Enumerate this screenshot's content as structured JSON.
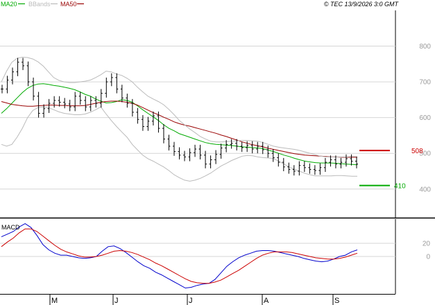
{
  "copyright": "© TEC 13/9/2026 3:0 GMT",
  "legend": [
    {
      "label": "MA20",
      "color": "#00aa00"
    },
    {
      "label": "BBands",
      "color": "#bbbbbb"
    },
    {
      "label": "MA50",
      "color": "#990000"
    }
  ],
  "macd_label": "MACD",
  "chart_data": [
    {
      "type": "line",
      "panel": "price",
      "y_ticks": [
        "800",
        "700",
        "600",
        "500",
        "400"
      ],
      "ylim": [
        320,
        900
      ],
      "x_month_labels": [
        "M",
        "J",
        "J",
        "A",
        "S"
      ],
      "levels": [
        {
          "name": "resistance",
          "value": 508,
          "label": "508",
          "color": "#cc0000"
        },
        {
          "name": "support",
          "value": 410,
          "label": "410",
          "color": "#00aa00"
        }
      ],
      "series": [
        {
          "name": "MA20",
          "color": "#00aa00",
          "values": [
            612,
            625,
            640,
            655,
            670,
            682,
            690,
            694,
            695,
            693,
            690,
            688,
            685,
            682,
            678,
            672,
            665,
            660,
            652,
            646,
            641,
            642,
            645,
            650,
            648,
            643,
            633,
            622,
            612,
            602,
            592,
            580,
            570,
            563,
            555,
            550,
            545,
            540,
            535,
            530,
            527,
            525,
            524,
            523,
            522,
            520,
            518,
            517,
            516,
            515,
            513,
            509,
            505,
            500,
            495,
            491,
            486,
            482,
            478,
            476,
            474,
            473,
            473,
            473,
            472,
            471,
            470,
            469,
            468
          ]
        },
        {
          "name": "MA50",
          "color": "#990000",
          "values": [
            645,
            641,
            637,
            635,
            633,
            632,
            632,
            633,
            634,
            635,
            635,
            634,
            634,
            633,
            633,
            633,
            634,
            637,
            640,
            643,
            645,
            646,
            646,
            645,
            643,
            640,
            635,
            628,
            621,
            614,
            608,
            601,
            595,
            588,
            583,
            579,
            576,
            572,
            568,
            564,
            560,
            556,
            551,
            547,
            542,
            537,
            532,
            528,
            524,
            521,
            518,
            514,
            511,
            508,
            505,
            502,
            499,
            497,
            495,
            494,
            493,
            492,
            491,
            490,
            490,
            489,
            489,
            489,
            489
          ]
        },
        {
          "name": "BBands upper",
          "color": "#bbbbbb",
          "values": [
            700,
            730,
            755,
            766,
            769,
            768,
            764,
            756,
            744,
            728,
            712,
            704,
            700,
            698,
            698,
            700,
            702,
            705,
            712,
            720,
            730,
            728,
            722,
            718,
            710,
            700,
            685,
            672,
            660,
            652,
            645,
            636,
            623,
            608,
            592,
            580,
            568,
            558,
            547,
            540,
            534,
            532,
            532,
            533,
            534,
            535,
            536,
            536,
            535,
            534,
            530,
            525,
            520,
            517,
            515,
            513,
            511,
            508,
            504,
            500,
            496,
            492,
            490,
            490,
            490,
            490,
            490,
            491,
            491
          ]
        },
        {
          "name": "BBands lower",
          "color": "#bbbbbb",
          "values": [
            525,
            520,
            525,
            545,
            570,
            600,
            620,
            628,
            630,
            628,
            622,
            616,
            612,
            610,
            608,
            608,
            610,
            615,
            622,
            630,
            610,
            592,
            575,
            560,
            545,
            525,
            510,
            495,
            485,
            478,
            470,
            462,
            452,
            440,
            432,
            425,
            422,
            425,
            430,
            437,
            445,
            455,
            465,
            472,
            480,
            486,
            492,
            494,
            493,
            490,
            488,
            487,
            485,
            478,
            470,
            462,
            455,
            450,
            444,
            440,
            437,
            437,
            437,
            437,
            438,
            438,
            437,
            436,
            436
          ]
        },
        {
          "name": "Price",
          "color": "#000000",
          "values": [
            680,
            705,
            728,
            755,
            745,
            700,
            660,
            612,
            625,
            640,
            648,
            643,
            638,
            630,
            660,
            648,
            630,
            648,
            640,
            668,
            700,
            712,
            680,
            655,
            640,
            615,
            595,
            575,
            590,
            605,
            570,
            540,
            520,
            505,
            495,
            490,
            502,
            512,
            495,
            470,
            482,
            497,
            515,
            525,
            528,
            520,
            516,
            522,
            512,
            520,
            510,
            500,
            488,
            475,
            462,
            455,
            450,
            466,
            460,
            455,
            452,
            460,
            475,
            482,
            470,
            475,
            485,
            478,
            470
          ]
        }
      ]
    },
    {
      "type": "line",
      "panel": "macd",
      "y_ticks": [
        "20",
        "0"
      ],
      "ylim": [
        -57,
        57
      ],
      "series": [
        {
          "name": "MACD",
          "color": "#0000cc",
          "values": [
            30,
            34,
            38,
            45,
            50,
            44,
            32,
            18,
            10,
            5,
            2,
            2,
            0,
            -2,
            -3,
            -2,
            0,
            8,
            15,
            16,
            12,
            6,
            -1,
            -8,
            -14,
            -18,
            -24,
            -28,
            -33,
            -38,
            -43,
            -48,
            -47,
            -44,
            -42,
            -41,
            -35,
            -25,
            -15,
            -8,
            -2,
            2,
            5,
            8,
            9,
            9,
            8,
            6,
            4,
            2,
            0,
            -3,
            -5,
            -7,
            -8,
            -7,
            -4,
            0,
            2,
            7,
            10
          ]
        },
        {
          "name": "Signal",
          "color": "#cc0000",
          "values": [
            15,
            22,
            28,
            36,
            42,
            42,
            38,
            31,
            24,
            17,
            11,
            7,
            4,
            1,
            -1,
            -1,
            0,
            2,
            5,
            8,
            9,
            8,
            6,
            3,
            -1,
            -5,
            -10,
            -14,
            -19,
            -24,
            -29,
            -34,
            -38,
            -40,
            -41,
            -41,
            -39,
            -36,
            -31,
            -26,
            -21,
            -15,
            -9,
            -3,
            2,
            5,
            7,
            7,
            7,
            6,
            4,
            2,
            0,
            -2,
            -3,
            -4,
            -4,
            -3,
            -1,
            2,
            5
          ]
        }
      ]
    }
  ]
}
